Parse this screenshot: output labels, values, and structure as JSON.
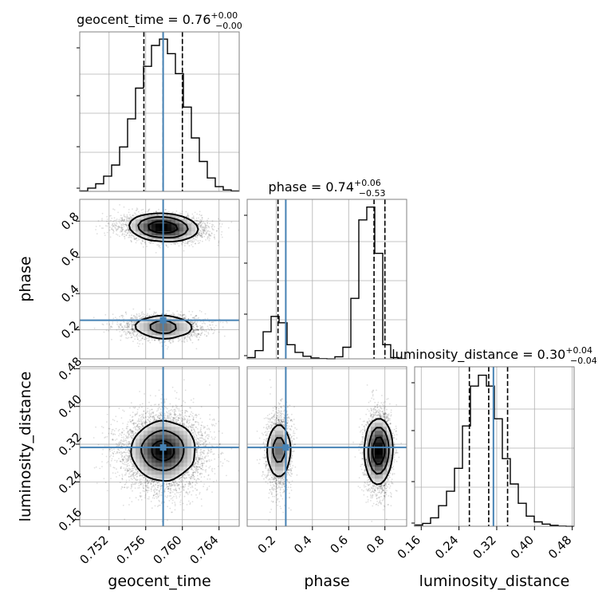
{
  "chart_data": {
    "type": "corner",
    "parameters": [
      "geocent_time",
      "phase",
      "luminosity_distance"
    ],
    "titles": [
      {
        "param": "geocent_time",
        "text": "geocent_time = 0.76",
        "plus": "+0.00",
        "minus": "−0.00"
      },
      {
        "param": "phase",
        "text": "phase = 0.74",
        "plus": "+0.06",
        "minus": "−0.53"
      },
      {
        "param": "luminosity_distance",
        "text": "luminosity_distance = 0.30",
        "plus": "+0.04",
        "minus": "−0.04"
      }
    ],
    "axis_labels": {
      "x": [
        "geocent_time",
        "phase",
        "luminosity_distance"
      ],
      "y": [
        "phase",
        "luminosity_distance"
      ]
    },
    "ranges": [
      [
        0.7488,
        0.7662
      ],
      [
        0.04,
        0.92
      ],
      [
        0.146,
        0.484
      ]
    ],
    "ticks": [
      {
        "values": [
          0.752,
          0.756,
          0.76,
          0.764
        ],
        "labels": [
          "0.752",
          "0.756",
          "0.760",
          "0.764"
        ]
      },
      {
        "values": [
          0.2,
          0.4,
          0.6,
          0.8
        ],
        "labels": [
          "0.2",
          "0.4",
          "0.6",
          "0.8"
        ]
      },
      {
        "values": [
          0.16,
          0.24,
          0.32,
          0.4,
          0.48
        ],
        "labels": [
          "0.16",
          "0.24",
          "0.32",
          "0.40",
          "0.48"
        ]
      }
    ],
    "truths": [
      0.7579,
      0.253,
      0.313
    ],
    "quantiles": [
      [
        0.7558,
        0.7579,
        0.76
      ],
      [
        0.21,
        0.74,
        0.8
      ],
      [
        0.262,
        0.303,
        0.343
      ]
    ],
    "histograms": [
      {
        "edges_start": 0.7488,
        "bin_width": 0.00087,
        "counts": [
          0.2,
          1.8,
          4.2,
          8.4,
          14.5,
          24.5,
          40.0,
          57.0,
          69.0,
          80.5,
          84.0,
          76.0,
          65.0,
          46.5,
          29.5,
          16.5,
          7.4,
          2.6,
          0.8,
          0.2
        ],
        "ylim": [
          0,
          88
        ]
      },
      {
        "edges_start": 0.04,
        "bin_width": 0.044,
        "counts": [
          0.5,
          3.2,
          10.5,
          16.5,
          14.0,
          5.5,
          2.5,
          1.0,
          0.3,
          0.1,
          0,
          0.8,
          4.5,
          23.5,
          54.0,
          59.0,
          41.0,
          5.5,
          0.5,
          0.1
        ],
        "ylim": [
          0,
          62
        ]
      },
      {
        "edges_start": 0.146,
        "bin_width": 0.0169,
        "counts": [
          0.5,
          1.2,
          3.5,
          8.5,
          14.5,
          24.0,
          41.5,
          58.0,
          62.5,
          58.0,
          44.5,
          28.0,
          17.5,
          9.5,
          4.2,
          1.8,
          0.9,
          0.4,
          0.1,
          0
        ],
        "ylim": [
          0,
          66
        ]
      }
    ],
    "contour_levels_sigma": [
      0.5,
      1.0,
      1.5,
      2.0
    ],
    "grid": true,
    "colors": {
      "truth": "#4682b4",
      "hist": "#000000",
      "quantile": "#000000",
      "grid": "#b0b0b0",
      "axes": "#808080"
    }
  }
}
